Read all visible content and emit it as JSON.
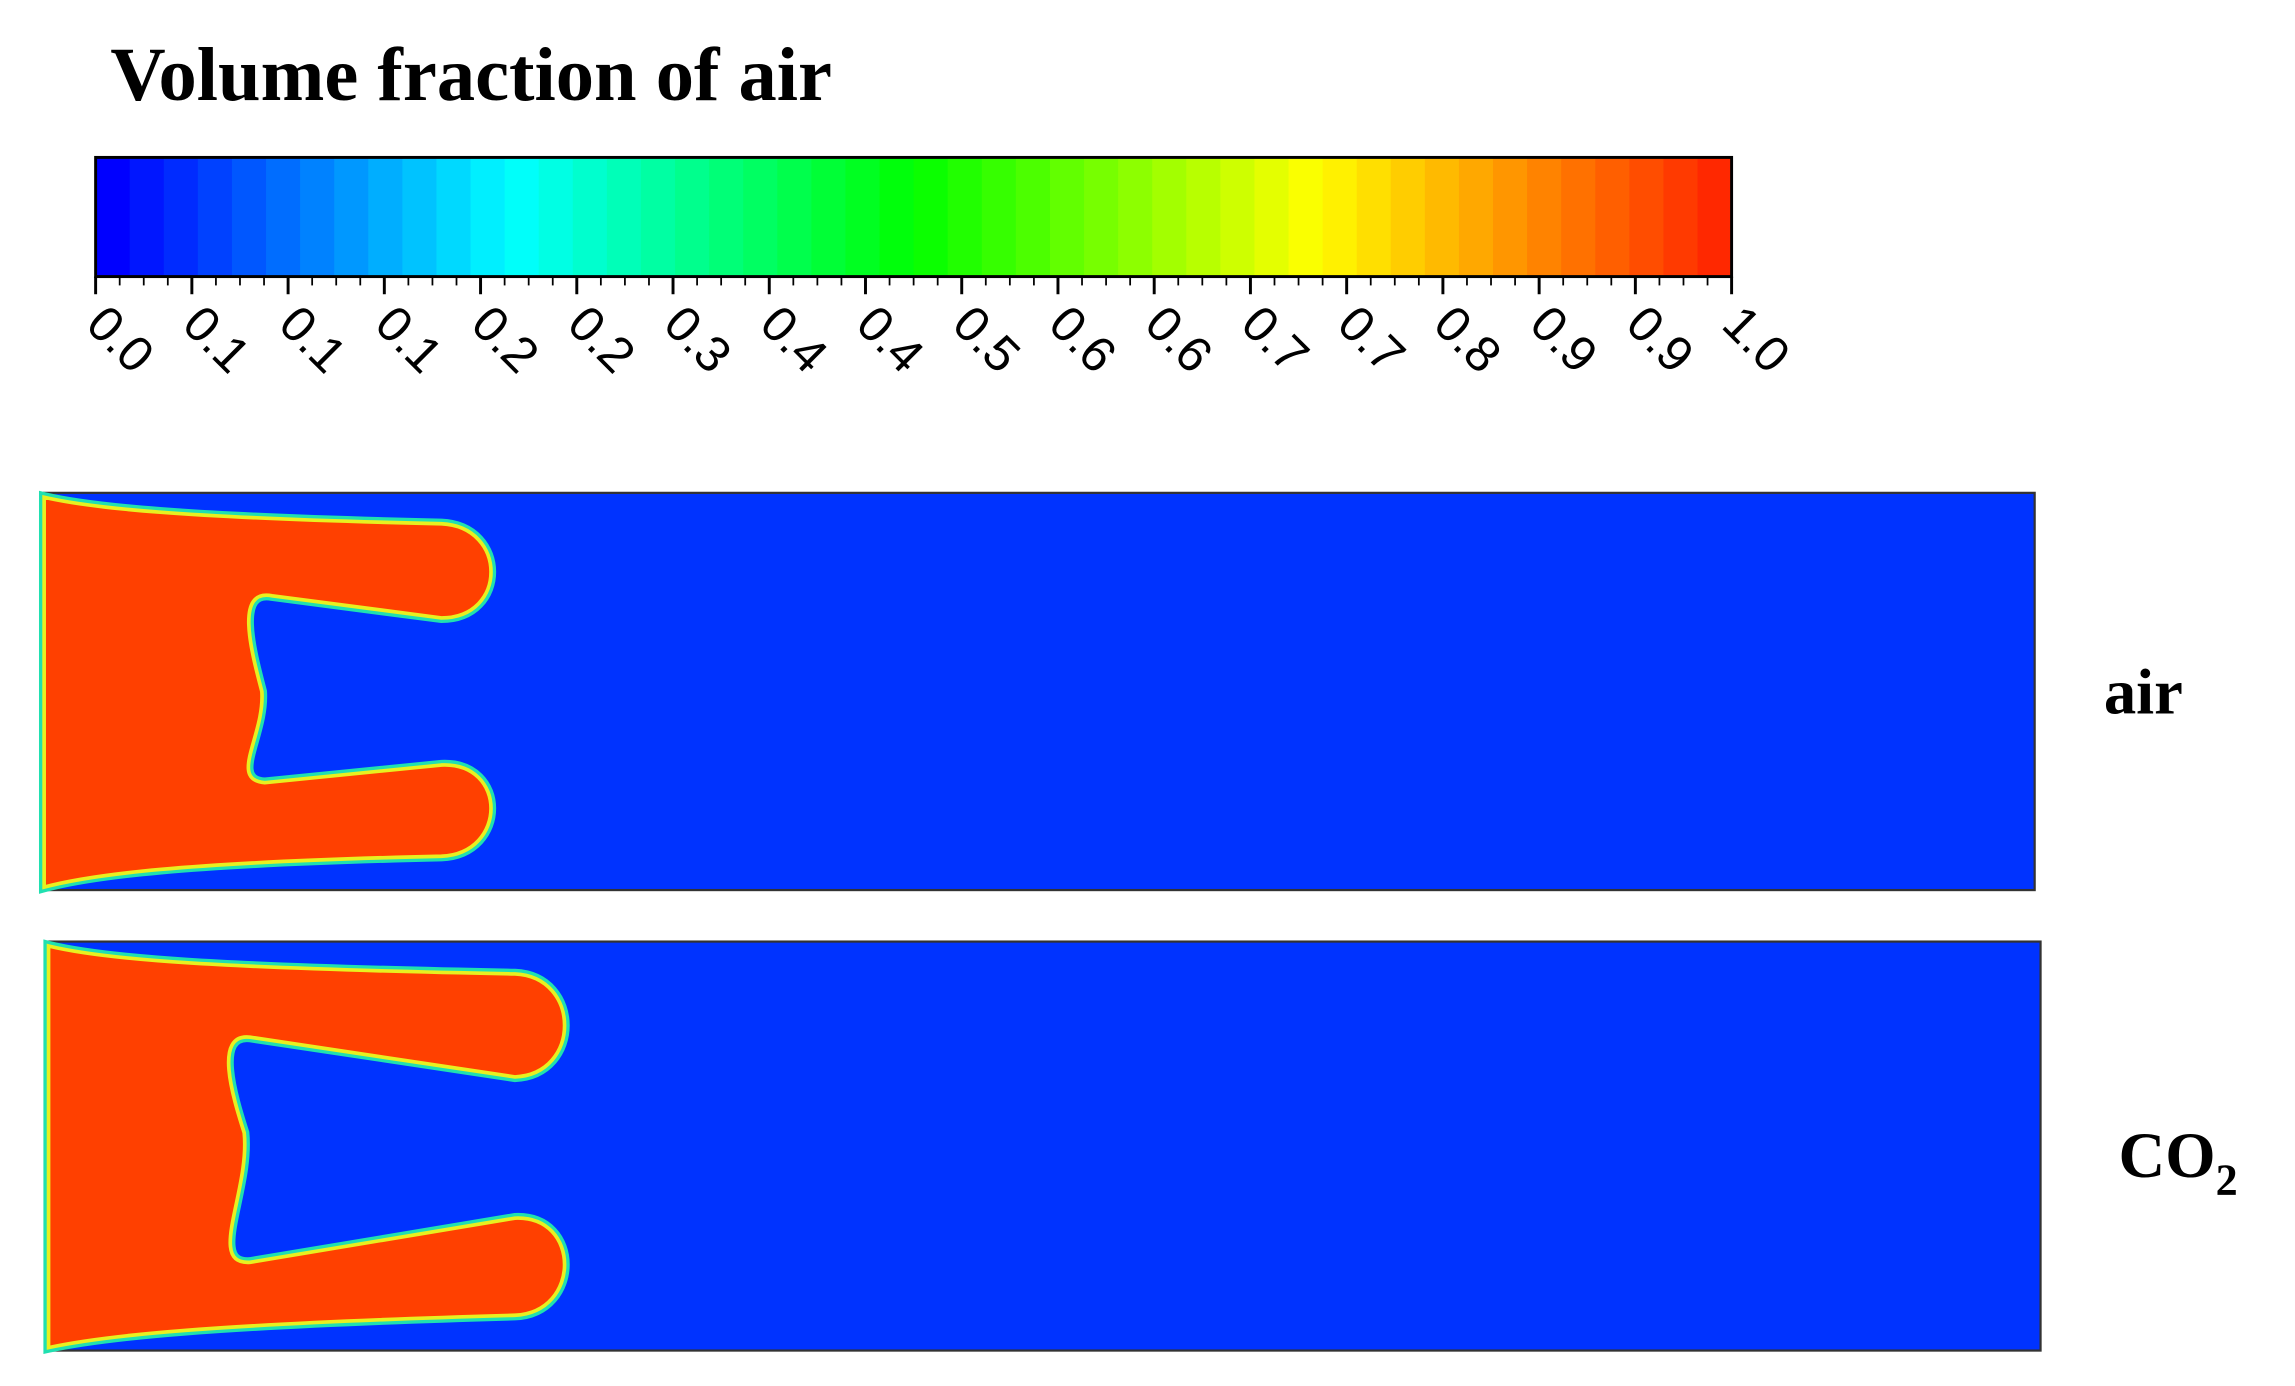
{
  "title": "Volume fraction of air",
  "colorbar": {
    "tick_labels": [
      "0.0",
      "0.1",
      "0.1",
      "0.1",
      "0.2",
      "0.2",
      "0.3",
      "0.4",
      "0.4",
      "0.5",
      "0.6",
      "0.6",
      "0.7",
      "0.7",
      "0.8",
      "0.9",
      "0.9",
      "1.0"
    ]
  },
  "panels": [
    {
      "label": {
        "text": "air"
      }
    },
    {
      "label": {
        "text": "CO",
        "subscript": "2"
      }
    }
  ]
}
